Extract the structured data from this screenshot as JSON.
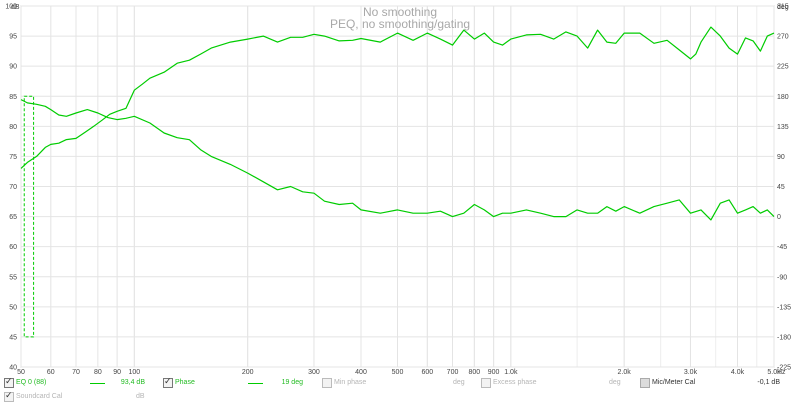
{
  "chart_data": {
    "type": "line",
    "title": "No smoothing",
    "subtitle": "PEQ, no smoothing/gating",
    "ylabel": "dB",
    "y2label": "deg",
    "xunit": "Hz",
    "xscale": "log",
    "xlim": [
      50,
      5000
    ],
    "ylim": [
      40,
      100
    ],
    "y2lim": [
      -225,
      315
    ],
    "grid": true,
    "yticks": [
      "100",
      "95",
      "90",
      "85",
      "80",
      "75",
      "70",
      "65",
      "60",
      "55",
      "50",
      "45",
      "40"
    ],
    "y2ticks": [
      "315",
      "270",
      "225",
      "180",
      "135",
      "90",
      "45",
      "0",
      "-45",
      "-90",
      "-135",
      "-180",
      "-225"
    ],
    "xticks": [
      {
        "value": 50,
        "label": "50"
      },
      {
        "value": 60,
        "label": "60"
      },
      {
        "value": 70,
        "label": "70"
      },
      {
        "value": 80,
        "label": "80"
      },
      {
        "value": 90,
        "label": "90"
      },
      {
        "value": 100,
        "label": "100"
      },
      {
        "value": 200,
        "label": "200"
      },
      {
        "value": 300,
        "label": "300"
      },
      {
        "value": 400,
        "label": "400"
      },
      {
        "value": 500,
        "label": "500"
      },
      {
        "value": 600,
        "label": "600"
      },
      {
        "value": 700,
        "label": "700"
      },
      {
        "value": 800,
        "label": "800"
      },
      {
        "value": 900,
        "label": "900"
      },
      {
        "value": 1000,
        "label": "1,0k"
      },
      {
        "value": 2000,
        "label": "2,0k"
      },
      {
        "value": 3000,
        "label": "3,0k"
      },
      {
        "value": 4000,
        "label": "4,0k"
      },
      {
        "value": 5000,
        "label": "5,0k"
      }
    ],
    "series": [
      {
        "name": "EQ 0 (88)",
        "axis": "left",
        "x": [
          50,
          52,
          55,
          58,
          60,
          63,
          66,
          70,
          74,
          78,
          82,
          86,
          90,
          95,
          100,
          105,
          110,
          120,
          130,
          140,
          150,
          160,
          180,
          200,
          220,
          240,
          260,
          280,
          300,
          320,
          350,
          380,
          400,
          450,
          500,
          550,
          600,
          650,
          700,
          750,
          800,
          850,
          900,
          950,
          1000,
          1100,
          1200,
          1300,
          1400,
          1500,
          1600,
          1700,
          1800,
          1900,
          2000,
          2200,
          2400,
          2600,
          2800,
          3000,
          3100,
          3200,
          3400,
          3600,
          3800,
          4000,
          4200,
          4400,
          4600,
          4800,
          5000
        ],
        "y": [
          73,
          74,
          75,
          76.5,
          77,
          77.2,
          77.8,
          78,
          79,
          80,
          81,
          82,
          82.5,
          83,
          86,
          87,
          88,
          89,
          90.5,
          91,
          92,
          93,
          94,
          94.5,
          95,
          94,
          94.8,
          94.8,
          95.3,
          95,
          94.2,
          94.3,
          94.6,
          94,
          95.5,
          94.3,
          95.5,
          94.5,
          93.5,
          96,
          94.5,
          95.5,
          94,
          93.5,
          94.5,
          95.2,
          95.3,
          94.5,
          95.7,
          95,
          93,
          96,
          94,
          93.8,
          95.5,
          95.5,
          93.8,
          94.3,
          92.7,
          91.2,
          92,
          94,
          96.5,
          95,
          93,
          92,
          94.7,
          94.2,
          92.5,
          95,
          95.5
        ]
      },
      {
        "name": "Phase",
        "axis": "right",
        "x": [
          50,
          52,
          55,
          58,
          60,
          63,
          66,
          70,
          75,
          80,
          85,
          90,
          95,
          100,
          110,
          120,
          130,
          140,
          150,
          160,
          180,
          200,
          220,
          240,
          260,
          280,
          300,
          320,
          350,
          380,
          400,
          450,
          500,
          550,
          600,
          650,
          700,
          750,
          800,
          850,
          900,
          950,
          1000,
          1100,
          1200,
          1300,
          1400,
          1500,
          1600,
          1700,
          1800,
          1900,
          2000,
          2200,
          2400,
          2600,
          2800,
          3000,
          3200,
          3400,
          3600,
          3800,
          4000,
          4200,
          4400,
          4600,
          4800,
          5000
        ],
        "y": [
          175,
          170,
          168,
          165,
          160,
          152,
          150,
          155,
          160,
          155,
          148,
          145,
          147,
          150,
          140,
          125,
          118,
          115,
          100,
          90,
          78,
          65,
          52,
          40,
          45,
          37,
          35,
          23,
          18,
          20,
          10,
          5,
          10,
          5,
          5,
          8,
          0,
          5,
          18,
          10,
          0,
          5,
          5,
          10,
          5,
          0,
          0,
          10,
          5,
          5,
          15,
          8,
          15,
          5,
          15,
          20,
          25,
          5,
          10,
          -5,
          20,
          25,
          5,
          10,
          15,
          5,
          10,
          0
        ]
      }
    ],
    "overlay": {
      "name": "Sweep range",
      "x": [
        51,
        54
      ],
      "y": [
        45,
        85
      ]
    }
  },
  "legend": {
    "row1": [
      {
        "checked": true,
        "label": "EQ 0 (88)",
        "value": "93,4 dB",
        "unit": "",
        "disabled": false
      },
      {
        "checked": true,
        "label": "Phase",
        "value": "19 deg",
        "unit": "",
        "disabled": false
      },
      {
        "checked": false,
        "label": "Min phase",
        "value": "",
        "unit": "deg",
        "disabled": true
      },
      {
        "checked": false,
        "label": "Excess phase",
        "value": "",
        "unit": "deg",
        "disabled": true
      },
      {
        "checked": false,
        "label": "Mic/Meter Cal",
        "value": "-0,1 dB",
        "unit": "",
        "disabled": false
      }
    ],
    "row2": [
      {
        "checked": true,
        "label": "Soundcard Cal",
        "value": "",
        "unit": "dB",
        "disabled": true
      }
    ]
  },
  "colors": {
    "green": "#00cc00",
    "grid": "#e4e4e4",
    "axis": "#999999",
    "title": "#a8a8a8"
  }
}
